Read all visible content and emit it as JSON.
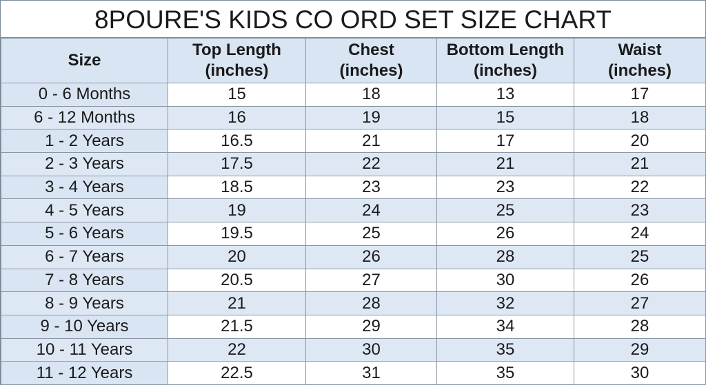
{
  "header": {
    "title": "8POURE'S KIDS CO ORD SET SIZE CHART"
  },
  "table": {
    "columns": [
      {
        "label": "Size"
      },
      {
        "label": "Top Length",
        "unit": "(inches)"
      },
      {
        "label": "Chest",
        "unit": "(inches)"
      },
      {
        "label": "Bottom Length",
        "unit": "(inches)"
      },
      {
        "label": "Waist",
        "unit": "(inches)"
      }
    ],
    "rows": [
      [
        "0 - 6 Months",
        15,
        18,
        13,
        17
      ],
      [
        "6 - 12 Months",
        16,
        19,
        15,
        18
      ],
      [
        "1 - 2 Years",
        16.5,
        21,
        17,
        20
      ],
      [
        "2 - 3 Years",
        17.5,
        22,
        21,
        21
      ],
      [
        "3 - 4 Years",
        18.5,
        23,
        23,
        22
      ],
      [
        "4 - 5 Years",
        19,
        24,
        25,
        23
      ],
      [
        "5 - 6 Years",
        19.5,
        25,
        26,
        24
      ],
      [
        "6 - 7 Years",
        20,
        26,
        28,
        25
      ],
      [
        "7 - 8 Years",
        20.5,
        27,
        30,
        26
      ],
      [
        "8 - 9 Years",
        21,
        28,
        32,
        27
      ],
      [
        "9 - 10 Years",
        21.5,
        29,
        34,
        28
      ],
      [
        "10 - 11 Years",
        22,
        30,
        35,
        29
      ],
      [
        "11 - 12 Years",
        22.5,
        31,
        35,
        30
      ]
    ]
  }
}
